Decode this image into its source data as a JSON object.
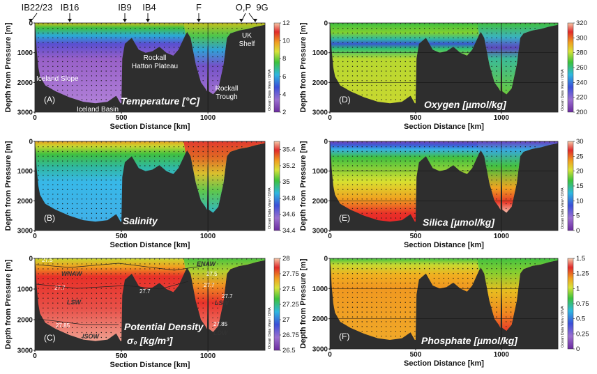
{
  "stations": [
    "IB22/23",
    "IB16",
    "IB9",
    "IB4",
    "F",
    "O,P",
    "9G"
  ],
  "watermark": "Ocean Data View / DIVA",
  "chart_data": [
    {
      "id": "A",
      "type": "heatmap",
      "label": "(A)",
      "title": "Temperature [°C]",
      "xlabel": "Section Distance [km]",
      "ylabel": "Depth from Pressure [m]",
      "xlim": [
        0,
        1330
      ],
      "ylim": [
        3000,
        0
      ],
      "xticks": [
        "0",
        "500",
        "1000"
      ],
      "yticks": [
        "0",
        "1000",
        "2000",
        "3000"
      ],
      "colorbar": {
        "min": 2,
        "max": 12,
        "ticks": [
          "2",
          "4",
          "6",
          "8",
          "10",
          "12"
        ]
      },
      "annotations": [
        "Iceland Slope",
        "Iceland Basin",
        "Rockall Hatton Plateau",
        "Rockall Trough",
        "UK Shelf"
      ]
    },
    {
      "id": "B",
      "type": "heatmap",
      "label": "(B)",
      "title": "Salinity",
      "xlabel": "Section Distance [km]",
      "ylabel": "Depth from Pressure [m]",
      "xlim": [
        0,
        1330
      ],
      "ylim": [
        3000,
        0
      ],
      "xticks": [
        "0",
        "500",
        "1000"
      ],
      "yticks": [
        "0",
        "1000",
        "2000",
        "3000"
      ],
      "colorbar": {
        "min": 34.4,
        "max": 35.5,
        "ticks": [
          "34.4",
          "34.6",
          "34.8",
          "35",
          "35.2",
          "35.4"
        ]
      }
    },
    {
      "id": "C",
      "type": "heatmap",
      "label": "(C)",
      "title": "Potential Density",
      "title2": "σ₀ [kg/m³]",
      "xlabel": "Section Distance [km]",
      "ylabel": "Depth from Pressure [m]",
      "xlim": [
        0,
        1330
      ],
      "ylim": [
        3000,
        0
      ],
      "xticks": [
        "0",
        "500",
        "1000"
      ],
      "yticks": [
        "0",
        "1000",
        "2000",
        "3000"
      ],
      "colorbar": {
        "min": 26.5,
        "max": 28,
        "ticks": [
          "26.5",
          "26.75",
          "27",
          "27.25",
          "27.5",
          "27.75",
          "28"
        ]
      },
      "water_masses": [
        "WNAW",
        "LSW",
        "ISOW",
        "ENAW",
        "LSW",
        "LDW"
      ],
      "isopycnals": [
        "27.5",
        "27.7",
        "27.85",
        "27.7",
        "27.5",
        "27.7",
        "27.7",
        "27.85"
      ]
    },
    {
      "id": "D",
      "type": "heatmap",
      "label": "(D)",
      "title": "Oxygen [µmol/kg]",
      "xlabel": "Section Distance [km]",
      "ylabel": "Depth from Pressure [m]",
      "xlim": [
        0,
        1330
      ],
      "ylim": [
        3000,
        0
      ],
      "xticks": [
        "0",
        "500",
        "1000"
      ],
      "yticks": [
        "0",
        "1000",
        "2000",
        "3000"
      ],
      "colorbar": {
        "min": 200,
        "max": 320,
        "ticks": [
          "200",
          "220",
          "240",
          "260",
          "280",
          "300",
          "320"
        ]
      }
    },
    {
      "id": "E",
      "type": "heatmap",
      "label": "(E)",
      "title": "Silica [µmol/kg]",
      "xlabel": "Section Distance [km]",
      "ylabel": "Depth from Pressure [m]",
      "xlim": [
        0,
        1330
      ],
      "ylim": [
        3000,
        0
      ],
      "xticks": [
        "0",
        "500",
        "1000"
      ],
      "yticks": [
        "0",
        "1000",
        "2000",
        "3000"
      ],
      "colorbar": {
        "min": 0,
        "max": 30,
        "ticks": [
          "0",
          "5",
          "10",
          "15",
          "20",
          "25",
          "30"
        ]
      }
    },
    {
      "id": "F",
      "type": "heatmap",
      "label": "(F)",
      "title": "Phosphate [µmol/kg]",
      "xlabel": "Section Distance [km]",
      "ylabel": "Depth from Pressure [m]",
      "xlim": [
        0,
        1330
      ],
      "ylim": [
        3000,
        0
      ],
      "xticks": [
        "0",
        "500",
        "1000"
      ],
      "yticks": [
        "0",
        "1000",
        "2000",
        "3000"
      ],
      "colorbar": {
        "min": 0,
        "max": 1.5,
        "ticks": [
          "0",
          "0.25",
          "0.5",
          "0.75",
          "1",
          "1.25",
          "1.5"
        ]
      }
    }
  ]
}
